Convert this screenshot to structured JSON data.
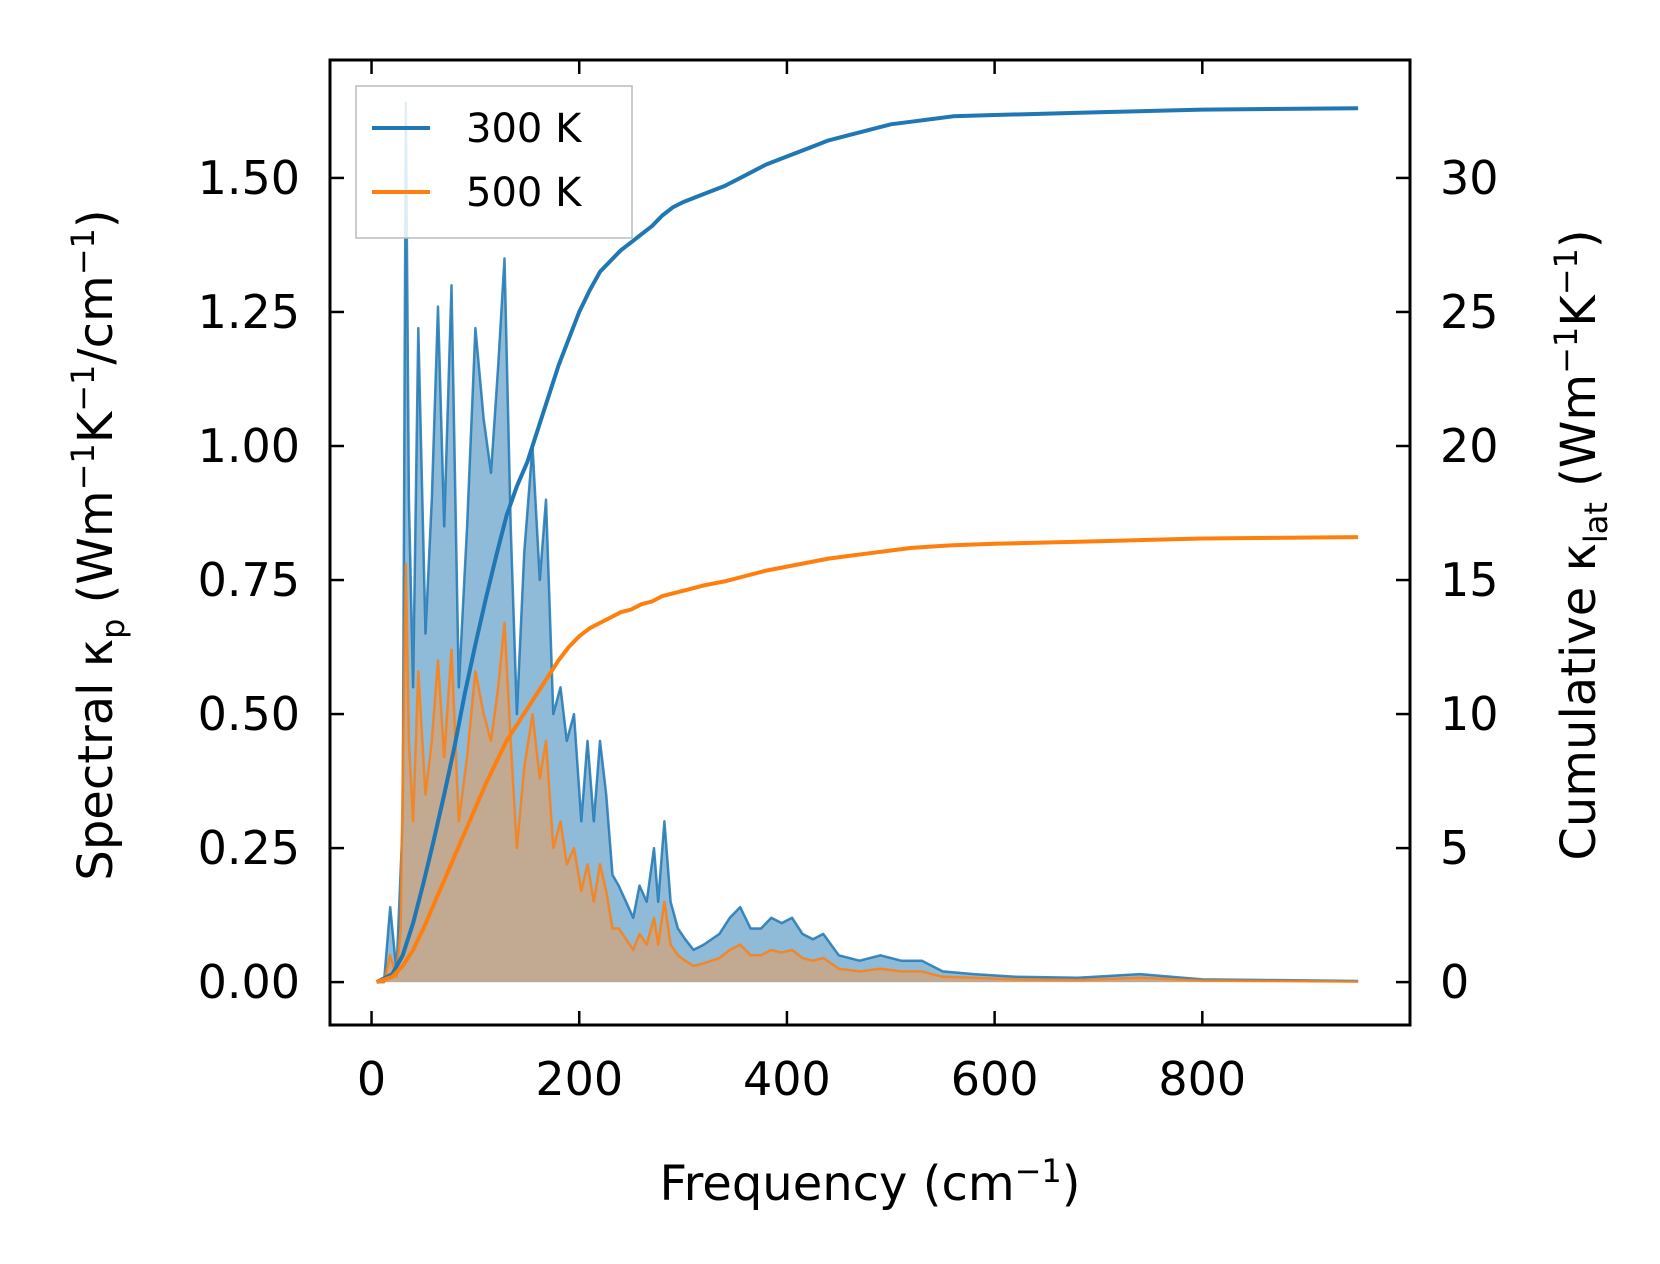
{
  "chart_data": {
    "type": "area",
    "title": "",
    "xlabel": "Frequency (cm⁻¹)",
    "ylabel_left": "Spectral κₚ (Wm⁻¹K⁻¹/cm⁻¹)",
    "ylabel_right": "Cumulative κₗₐₜ (Wm⁻¹K⁻¹)",
    "xlim": [
      -40,
      1000
    ],
    "ylim_left": [
      -0.08,
      1.72
    ],
    "ylim_right": [
      -1.6,
      34.4
    ],
    "x_ticks": [
      0,
      200,
      400,
      600,
      800
    ],
    "x_tick_labels": [
      "0",
      "200",
      "400",
      "600",
      "800"
    ],
    "y_left_ticks": [
      0.0,
      0.25,
      0.5,
      0.75,
      1.0,
      1.25,
      1.5
    ],
    "y_left_tick_labels": [
      "0.00",
      "0.25",
      "0.50",
      "0.75",
      "1.00",
      "1.25",
      "1.50"
    ],
    "y_right_ticks": [
      0,
      5,
      10,
      15,
      20,
      25,
      30
    ],
    "y_right_tick_labels": [
      "0",
      "5",
      "10",
      "15",
      "20",
      "25",
      "30"
    ],
    "legend_position": "top-left",
    "series": [
      {
        "name": "300 K",
        "color": "#1f77b4",
        "fill_color": "#1f77b4",
        "spectral": [
          [
            5,
            0
          ],
          [
            12,
            0
          ],
          [
            18,
            0.14
          ],
          [
            24,
            0.02
          ],
          [
            30,
            0.3
          ],
          [
            33,
            1.64
          ],
          [
            36,
            0.9
          ],
          [
            40,
            0.55
          ],
          [
            45,
            1.22
          ],
          [
            52,
            0.65
          ],
          [
            58,
            0.9
          ],
          [
            64,
            1.26
          ],
          [
            70,
            0.85
          ],
          [
            77,
            1.3
          ],
          [
            84,
            0.55
          ],
          [
            92,
            0.85
          ],
          [
            100,
            1.22
          ],
          [
            108,
            1.05
          ],
          [
            115,
            0.95
          ],
          [
            122,
            1.15
          ],
          [
            128,
            1.35
          ],
          [
            134,
            0.85
          ],
          [
            140,
            0.5
          ],
          [
            147,
            0.8
          ],
          [
            155,
            1.0
          ],
          [
            162,
            0.75
          ],
          [
            168,
            0.9
          ],
          [
            175,
            0.5
          ],
          [
            182,
            0.55
          ],
          [
            188,
            0.45
          ],
          [
            195,
            0.5
          ],
          [
            202,
            0.3
          ],
          [
            208,
            0.45
          ],
          [
            214,
            0.3
          ],
          [
            220,
            0.45
          ],
          [
            226,
            0.35
          ],
          [
            232,
            0.2
          ],
          [
            238,
            0.18
          ],
          [
            245,
            0.15
          ],
          [
            252,
            0.12
          ],
          [
            258,
            0.18
          ],
          [
            265,
            0.15
          ],
          [
            272,
            0.25
          ],
          [
            276,
            0.15
          ],
          [
            282,
            0.3
          ],
          [
            288,
            0.15
          ],
          [
            295,
            0.1
          ],
          [
            302,
            0.08
          ],
          [
            310,
            0.06
          ],
          [
            320,
            0.07
          ],
          [
            335,
            0.09
          ],
          [
            345,
            0.12
          ],
          [
            355,
            0.14
          ],
          [
            365,
            0.1
          ],
          [
            375,
            0.1
          ],
          [
            385,
            0.12
          ],
          [
            395,
            0.11
          ],
          [
            405,
            0.12
          ],
          [
            415,
            0.09
          ],
          [
            425,
            0.08
          ],
          [
            435,
            0.09
          ],
          [
            450,
            0.05
          ],
          [
            470,
            0.04
          ],
          [
            490,
            0.05
          ],
          [
            510,
            0.04
          ],
          [
            530,
            0.04
          ],
          [
            550,
            0.02
          ],
          [
            580,
            0.015
          ],
          [
            620,
            0.01
          ],
          [
            680,
            0.008
          ],
          [
            740,
            0.015
          ],
          [
            800,
            0.005
          ],
          [
            860,
            0.004
          ],
          [
            950,
            0.002
          ]
        ],
        "cumulative": [
          [
            5,
            0
          ],
          [
            20,
            0.3
          ],
          [
            30,
            1.0
          ],
          [
            40,
            2.2
          ],
          [
            50,
            3.7
          ],
          [
            60,
            5.3
          ],
          [
            70,
            7.0
          ],
          [
            80,
            8.8
          ],
          [
            90,
            10.8
          ],
          [
            100,
            12.6
          ],
          [
            110,
            14.3
          ],
          [
            120,
            15.9
          ],
          [
            130,
            17.4
          ],
          [
            140,
            18.5
          ],
          [
            150,
            19.4
          ],
          [
            160,
            20.6
          ],
          [
            170,
            21.8
          ],
          [
            180,
            23.0
          ],
          [
            190,
            24.0
          ],
          [
            200,
            25.0
          ],
          [
            210,
            25.8
          ],
          [
            220,
            26.5
          ],
          [
            230,
            26.9
          ],
          [
            240,
            27.3
          ],
          [
            250,
            27.6
          ],
          [
            260,
            27.9
          ],
          [
            270,
            28.2
          ],
          [
            280,
            28.6
          ],
          [
            290,
            28.9
          ],
          [
            300,
            29.1
          ],
          [
            320,
            29.4
          ],
          [
            340,
            29.7
          ],
          [
            360,
            30.1
          ],
          [
            380,
            30.5
          ],
          [
            400,
            30.8
          ],
          [
            420,
            31.1
          ],
          [
            440,
            31.4
          ],
          [
            460,
            31.6
          ],
          [
            480,
            31.8
          ],
          [
            500,
            32.0
          ],
          [
            520,
            32.1
          ],
          [
            540,
            32.2
          ],
          [
            560,
            32.3
          ],
          [
            600,
            32.35
          ],
          [
            700,
            32.45
          ],
          [
            800,
            32.55
          ],
          [
            950,
            32.6
          ]
        ]
      },
      {
        "name": "500 K",
        "color": "#ff7f0e",
        "fill_color": "#d2a37a",
        "spectral": [
          [
            5,
            0
          ],
          [
            12,
            0
          ],
          [
            18,
            0.05
          ],
          [
            24,
            0.01
          ],
          [
            28,
            0.1
          ],
          [
            33,
            0.78
          ],
          [
            36,
            0.45
          ],
          [
            40,
            0.3
          ],
          [
            45,
            0.58
          ],
          [
            52,
            0.35
          ],
          [
            58,
            0.45
          ],
          [
            64,
            0.6
          ],
          [
            70,
            0.42
          ],
          [
            77,
            0.62
          ],
          [
            84,
            0.3
          ],
          [
            92,
            0.42
          ],
          [
            100,
            0.58
          ],
          [
            108,
            0.5
          ],
          [
            115,
            0.45
          ],
          [
            122,
            0.55
          ],
          [
            128,
            0.67
          ],
          [
            134,
            0.45
          ],
          [
            140,
            0.25
          ],
          [
            147,
            0.4
          ],
          [
            155,
            0.5
          ],
          [
            162,
            0.38
          ],
          [
            168,
            0.45
          ],
          [
            175,
            0.25
          ],
          [
            182,
            0.3
          ],
          [
            188,
            0.22
          ],
          [
            195,
            0.25
          ],
          [
            202,
            0.17
          ],
          [
            208,
            0.22
          ],
          [
            214,
            0.15
          ],
          [
            220,
            0.22
          ],
          [
            226,
            0.17
          ],
          [
            232,
            0.1
          ],
          [
            238,
            0.1
          ],
          [
            245,
            0.08
          ],
          [
            252,
            0.06
          ],
          [
            258,
            0.09
          ],
          [
            265,
            0.07
          ],
          [
            272,
            0.12
          ],
          [
            276,
            0.07
          ],
          [
            282,
            0.15
          ],
          [
            288,
            0.07
          ],
          [
            295,
            0.05
          ],
          [
            302,
            0.04
          ],
          [
            310,
            0.03
          ],
          [
            320,
            0.035
          ],
          [
            335,
            0.045
          ],
          [
            345,
            0.06
          ],
          [
            355,
            0.07
          ],
          [
            365,
            0.05
          ],
          [
            375,
            0.05
          ],
          [
            385,
            0.06
          ],
          [
            395,
            0.055
          ],
          [
            405,
            0.06
          ],
          [
            415,
            0.045
          ],
          [
            425,
            0.04
          ],
          [
            435,
            0.045
          ],
          [
            450,
            0.025
          ],
          [
            470,
            0.02
          ],
          [
            490,
            0.025
          ],
          [
            510,
            0.02
          ],
          [
            530,
            0.02
          ],
          [
            550,
            0.01
          ],
          [
            580,
            0.008
          ],
          [
            620,
            0.005
          ],
          [
            680,
            0.004
          ],
          [
            740,
            0.008
          ],
          [
            800,
            0.003
          ],
          [
            860,
            0.002
          ],
          [
            950,
            0.001
          ]
        ],
        "cumulative": [
          [
            5,
            0
          ],
          [
            20,
            0.2
          ],
          [
            30,
            0.6
          ],
          [
            40,
            1.2
          ],
          [
            50,
            2.0
          ],
          [
            60,
            2.9
          ],
          [
            70,
            3.8
          ],
          [
            80,
            4.7
          ],
          [
            90,
            5.6
          ],
          [
            100,
            6.5
          ],
          [
            110,
            7.4
          ],
          [
            120,
            8.2
          ],
          [
            130,
            9.0
          ],
          [
            140,
            9.6
          ],
          [
            150,
            10.2
          ],
          [
            160,
            10.8
          ],
          [
            170,
            11.4
          ],
          [
            180,
            12.0
          ],
          [
            190,
            12.5
          ],
          [
            200,
            12.9
          ],
          [
            210,
            13.2
          ],
          [
            220,
            13.4
          ],
          [
            230,
            13.6
          ],
          [
            240,
            13.8
          ],
          [
            250,
            13.9
          ],
          [
            260,
            14.1
          ],
          [
            270,
            14.2
          ],
          [
            280,
            14.4
          ],
          [
            290,
            14.5
          ],
          [
            300,
            14.6
          ],
          [
            320,
            14.8
          ],
          [
            340,
            14.95
          ],
          [
            360,
            15.15
          ],
          [
            380,
            15.35
          ],
          [
            400,
            15.5
          ],
          [
            420,
            15.65
          ],
          [
            440,
            15.8
          ],
          [
            460,
            15.9
          ],
          [
            480,
            16.0
          ],
          [
            500,
            16.1
          ],
          [
            520,
            16.2
          ],
          [
            540,
            16.25
          ],
          [
            560,
            16.3
          ],
          [
            600,
            16.35
          ],
          [
            700,
            16.45
          ],
          [
            800,
            16.55
          ],
          [
            950,
            16.6
          ]
        ]
      }
    ]
  }
}
